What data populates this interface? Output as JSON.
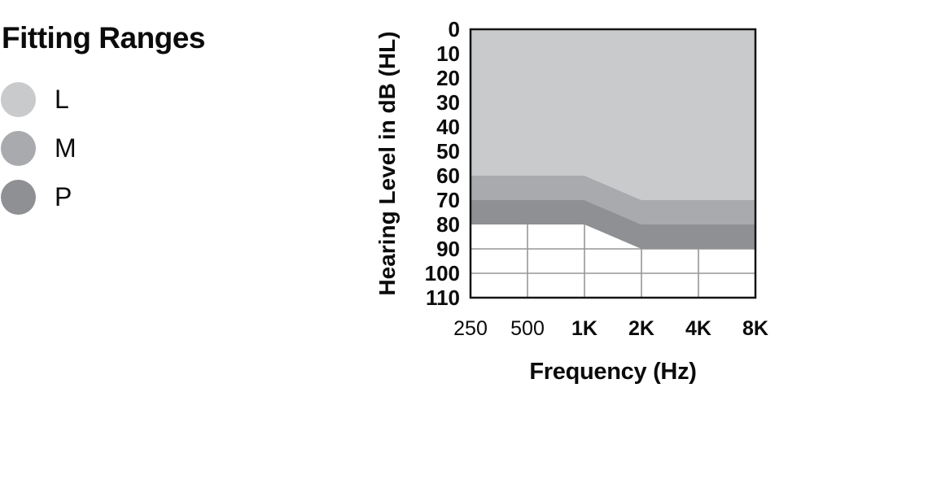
{
  "legend": {
    "title": "Fitting Ranges",
    "items": [
      {
        "label": "L",
        "color": "#c8cacc"
      },
      {
        "label": "M",
        "color": "#a8aaad"
      },
      {
        "label": "P",
        "color": "#8e9093"
      }
    ]
  },
  "chart_data": {
    "type": "area",
    "title": "Fitting Ranges",
    "xlabel": "Frequency (Hz)",
    "ylabel": "Hearing Level in dB (HL)",
    "x_categories": [
      "250",
      "500",
      "1K",
      "2K",
      "4K",
      "8K"
    ],
    "x_bold_labels": [
      "1K",
      "2K",
      "4K",
      "8K"
    ],
    "y_ticks": [
      0,
      10,
      20,
      30,
      40,
      50,
      60,
      70,
      80,
      90,
      100,
      110
    ],
    "ylim": [
      0,
      110
    ],
    "y_axis_direction": "increasing downward",
    "series": [
      {
        "name": "L",
        "color": "#c8cacc",
        "upper_bound_db": 0,
        "lower_bound_db": [
          [
            "250",
            60
          ],
          [
            "1K",
            60
          ],
          [
            "2K",
            70
          ],
          [
            "8K",
            70
          ]
        ]
      },
      {
        "name": "M",
        "color": "#a8aaad",
        "lower_bound_db": [
          [
            "250",
            70
          ],
          [
            "1K",
            70
          ],
          [
            "2K",
            80
          ],
          [
            "8K",
            80
          ]
        ]
      },
      {
        "name": "P",
        "color": "#8e9093",
        "lower_bound_db": [
          [
            "250",
            80
          ],
          [
            "1K",
            80
          ],
          [
            "2K",
            90
          ],
          [
            "8K",
            90
          ]
        ]
      }
    ],
    "grid": {
      "h_lines_db": [
        90,
        100
      ],
      "v_lines_at": [
        "500",
        "1K",
        "2K",
        "4K"
      ],
      "color": "#979797"
    },
    "border_color": "#141414"
  }
}
